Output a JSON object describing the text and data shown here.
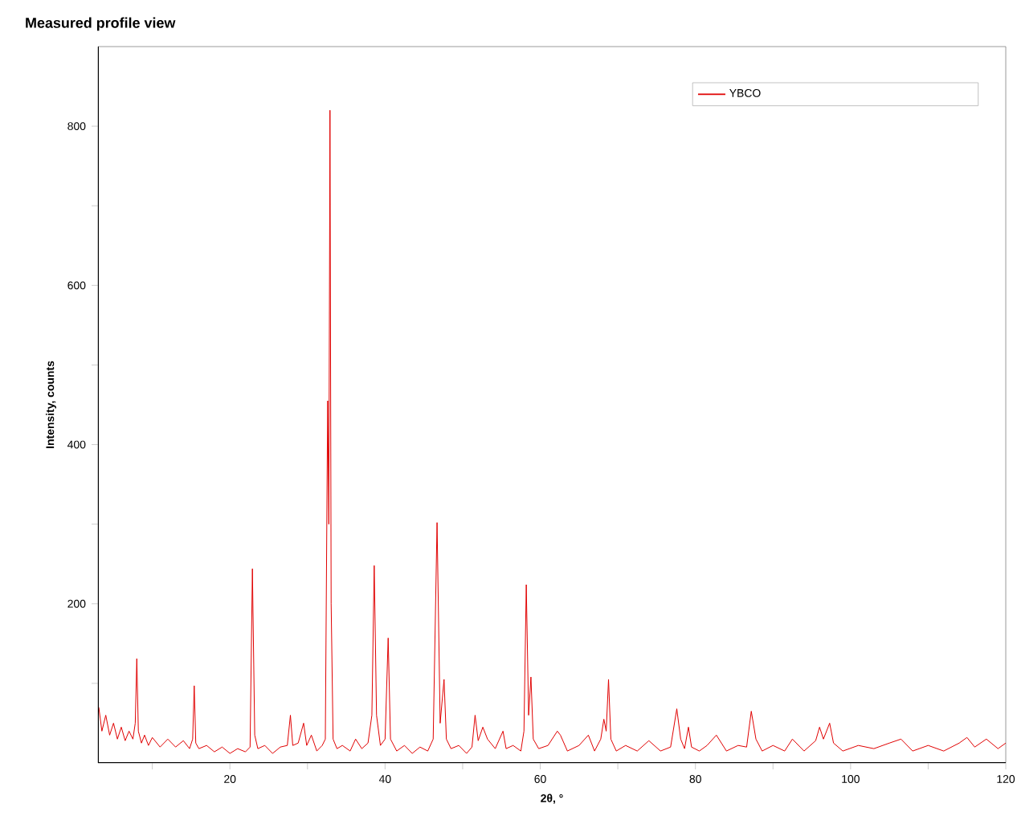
{
  "chart_data": {
    "type": "line",
    "title": "Measured profile view",
    "xlabel": "2θ, °",
    "ylabel": "Intensity, counts",
    "xlim": [
      3,
      120
    ],
    "ylim": [
      0,
      900
    ],
    "xticks": [
      {
        "value": 10,
        "label": null
      },
      20,
      {
        "value": 30,
        "label": null
      },
      40,
      {
        "value": 50,
        "label": null
      },
      60,
      {
        "value": 70,
        "label": null
      },
      80,
      {
        "value": 90,
        "label": null
      },
      100,
      {
        "value": 110,
        "label": null
      },
      120
    ],
    "yticks": [
      {
        "value": 100,
        "label": null
      },
      200,
      {
        "value": 300,
        "label": null
      },
      400,
      {
        "value": 500,
        "label": null
      },
      600,
      {
        "value": 700,
        "label": null
      },
      800
    ],
    "grid": false,
    "legend": "top right",
    "marker": "none",
    "line_style": "solid",
    "series": [
      {
        "name": "YBCO",
        "color": "#e00000",
        "x": [
          3.1,
          3.5,
          4,
          4.5,
          5,
          5.5,
          6,
          6.5,
          7,
          7.5,
          7.8,
          8.0,
          8.2,
          8.6,
          9,
          9.5,
          10,
          11,
          12,
          13,
          14,
          14.8,
          15.2,
          15.4,
          15.6,
          16,
          17,
          18,
          19,
          20,
          21,
          22,
          22.6,
          22.9,
          23.2,
          23.6,
          24.5,
          25.5,
          26.5,
          27.4,
          27.8,
          28.1,
          28.8,
          29.5,
          29.9,
          30.5,
          31.2,
          31.9,
          32.3,
          32.6,
          32.75,
          32.9,
          33.05,
          33.3,
          33.8,
          34.5,
          35.5,
          36.2,
          37,
          37.8,
          38.3,
          38.6,
          38.9,
          39.4,
          40.0,
          40.4,
          40.7,
          41.5,
          42.5,
          43.5,
          44.5,
          45.5,
          46.2,
          46.7,
          47.1,
          47.6,
          47.9,
          48.5,
          49.5,
          50.5,
          51.2,
          51.6,
          52.0,
          52.6,
          53.2,
          54.2,
          55.2,
          55.6,
          56.5,
          57.5,
          57.9,
          58.2,
          58.5,
          58.8,
          59.1,
          59.8,
          61,
          62.2,
          62.6,
          63.5,
          65,
          66.2,
          67,
          67.8,
          68.2,
          68.5,
          68.8,
          69.1,
          69.8,
          71,
          72.5,
          74,
          75.5,
          76.8,
          77.6,
          78.1,
          78.6,
          79.1,
          79.5,
          80.5,
          81.5,
          82.7,
          84,
          85.5,
          86.6,
          87.2,
          87.8,
          88.6,
          90,
          91.5,
          92.5,
          94,
          95.5,
          96,
          96.5,
          97.3,
          97.8,
          99,
          101,
          103,
          105,
          106.5,
          108,
          110,
          112,
          114,
          115,
          116,
          117.5,
          119,
          120
        ],
        "values": [
          70,
          40,
          60,
          35,
          50,
          30,
          45,
          28,
          40,
          30,
          50,
          131,
          40,
          25,
          35,
          22,
          32,
          20,
          30,
          20,
          28,
          18,
          30,
          97,
          25,
          18,
          22,
          14,
          20,
          12,
          18,
          14,
          20,
          244,
          35,
          18,
          22,
          12,
          20,
          22,
          60,
          22,
          25,
          50,
          22,
          35,
          15,
          22,
          30,
          455,
          300,
          820,
          200,
          30,
          18,
          22,
          15,
          30,
          18,
          25,
          60,
          248,
          60,
          22,
          30,
          157,
          30,
          15,
          22,
          12,
          20,
          15,
          30,
          302,
          50,
          105,
          30,
          18,
          22,
          12,
          20,
          60,
          28,
          45,
          30,
          18,
          40,
          18,
          22,
          15,
          40,
          224,
          60,
          108,
          30,
          18,
          22,
          40,
          35,
          15,
          22,
          35,
          15,
          30,
          55,
          40,
          105,
          30,
          15,
          22,
          15,
          28,
          15,
          20,
          68,
          30,
          18,
          45,
          20,
          15,
          22,
          35,
          15,
          22,
          20,
          65,
          30,
          15,
          22,
          15,
          30,
          15,
          28,
          45,
          30,
          50,
          25,
          15,
          22,
          18,
          25,
          30,
          15,
          22,
          15,
          25,
          32,
          20,
          30,
          18,
          25
        ]
      }
    ]
  }
}
